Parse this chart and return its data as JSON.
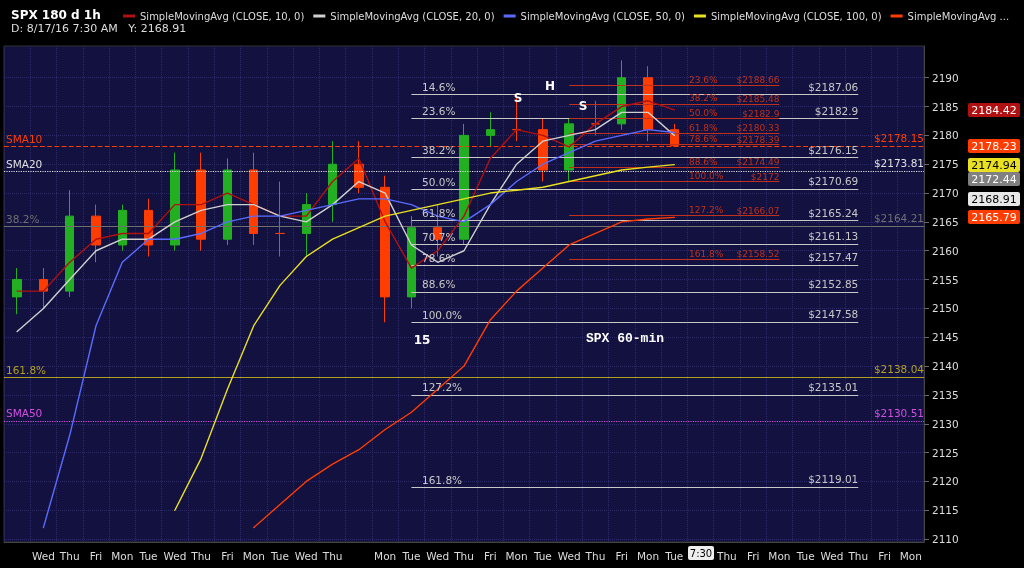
{
  "chart_data": {
    "type": "candlestick",
    "title": "SPX 180 d 1h",
    "subtitle": "D: 8/17/16 7:30 AM   Y: 2168.91",
    "categories": [
      null,
      "Wed",
      "Thu",
      "Fri",
      "Mon",
      "Tue",
      "Wed",
      "Thu",
      "Fri",
      "Mon",
      "Tue",
      "Wed",
      "Thu",
      null,
      "Mon",
      "Tue",
      "Wed",
      "Thu",
      "Fri",
      "Mon",
      "Tue",
      "Wed",
      "Thu",
      "Fri",
      "Mon",
      "Tue",
      null,
      "Thu",
      "Fri",
      "Mon",
      "Tue",
      "Wed",
      "Thu",
      "Fri",
      "Mon"
    ],
    "ohlc": [
      [
        2152,
        2157,
        2149,
        2155
      ],
      [
        2155,
        2157,
        2150,
        2153
      ],
      [
        2153,
        2170.5,
        2152,
        2166
      ],
      [
        2166,
        2168,
        2158,
        2161
      ],
      [
        2161,
        2168,
        2160,
        2167
      ],
      [
        2167,
        2169,
        2159,
        2161
      ],
      [
        2161,
        2177,
        2160,
        2174
      ],
      [
        2174,
        2177,
        2160,
        2162
      ],
      [
        2162,
        2176,
        2161,
        2174
      ],
      [
        2174,
        2177,
        2161,
        2163
      ],
      [
        2163,
        2172,
        2159,
        2163
      ],
      [
        2163,
        2170,
        2159,
        2168
      ],
      [
        2168,
        2179,
        2165,
        2175
      ],
      [
        2175,
        2179,
        2170,
        2171
      ],
      [
        2171,
        2173,
        2147.6,
        2152
      ],
      [
        2152,
        2166,
        2150,
        2164
      ],
      [
        2164,
        2168,
        2159,
        2162
      ],
      [
        2162,
        2182,
        2161,
        2180
      ],
      [
        2180,
        2184,
        2178,
        2181
      ],
      [
        2181,
        2187,
        2179,
        2181
      ],
      [
        2181,
        2183,
        2172,
        2174
      ],
      [
        2174,
        2183,
        2172,
        2182
      ],
      [
        2182,
        2186,
        2180,
        2182
      ],
      [
        2182,
        2193,
        2181,
        2190
      ],
      [
        2190,
        2192,
        2179,
        2181
      ],
      [
        2181,
        2182,
        2178,
        2178.23
      ],
      null,
      null,
      null,
      null,
      null,
      null,
      null,
      null,
      null
    ],
    "colors": [
      "#22b022",
      "#ff3d00",
      "#22b022",
      "#ff3d00",
      "#22b022",
      "#ff3d00",
      "#22b022",
      "#ff3d00",
      "#22b022",
      "#ff3d00",
      "#ff3d00",
      "#22b022",
      "#22b022",
      "#ff3d00",
      "#ff3d00",
      "#22b022",
      "#ff3d00",
      "#22b022",
      "#22b022",
      "#ff3d00",
      "#ff3d00",
      "#22b022",
      "#ff3d00",
      "#22b022",
      "#ff3d00",
      "#ff3d00",
      null,
      null,
      null,
      null,
      null,
      null,
      null,
      null,
      null
    ],
    "series": [
      {
        "type": "line",
        "name": "SimpleMovingAvg (CLOSE, 10, 0)",
        "color": "#b01010",
        "values": [
          2153,
          2153,
          2158,
          2162,
          2163,
          2163,
          2168,
          2168,
          2170,
          2168,
          2166,
          2166,
          2172,
          2176,
          2165,
          2157,
          2160,
          2166,
          2176,
          2181,
          2180,
          2178,
          2182,
          2185,
          2186,
          2184.42,
          null,
          null,
          null,
          null,
          null,
          null,
          null,
          null,
          null
        ]
      },
      {
        "type": "line",
        "name": "SimpleMovingAvg (CLOSE, 20, 0)",
        "color": "#d0d0d0",
        "values": [
          2146,
          2150,
          2155,
          2160,
          2162,
          2162,
          2165,
          2167,
          2168,
          2168,
          2166,
          2165,
          2168,
          2172,
          2170,
          2161,
          2158,
          2160,
          2168,
          2175,
          2179,
          2180,
          2181,
          2184,
          2184,
          2180,
          null,
          null,
          null,
          null,
          null,
          null,
          null,
          null,
          null
        ]
      },
      {
        "type": "line",
        "name": "SimpleMovingAvg (CLOSE, 50, 0)",
        "color": "#5a6cff",
        "values": [
          null,
          2112,
          2128,
          2147,
          2158,
          2162,
          2162,
          2163,
          2165,
          2166,
          2166,
          2167,
          2168,
          2169,
          2169,
          2168,
          2166,
          2165,
          2168,
          2172,
          2175,
          2177,
          2179,
          2180,
          2181,
          2180.5,
          null,
          null,
          null,
          null,
          null,
          null,
          null,
          null,
          null
        ]
      },
      {
        "type": "line",
        "name": "SimpleMovingAvg (CLOSE, 100, 0)",
        "color": "#e8e020",
        "values": [
          null,
          null,
          null,
          null,
          null,
          null,
          2115,
          2124,
          2136,
          2147,
          2154,
          2159,
          2162,
          2164,
          2166,
          2167,
          2168,
          2169,
          2170,
          2170.5,
          2171,
          2172,
          2173,
          2174,
          2174.5,
          2174.94,
          null,
          null,
          null,
          null,
          null,
          null,
          null,
          null,
          null
        ]
      },
      {
        "type": "line",
        "name": "SimpleMovingAvg ...",
        "color": "#ff3d00",
        "values": [
          null,
          null,
          null,
          null,
          null,
          null,
          null,
          null,
          null,
          2112,
          2116,
          2120,
          2123,
          2125.5,
          2129,
          2132,
          2136,
          2140,
          2148,
          2153,
          2157,
          2161,
          2163,
          2165,
          2165.5,
          2165.79,
          null,
          null,
          null,
          null,
          null,
          null,
          null,
          null,
          null
        ]
      }
    ],
    "ylim": [
      2109.5,
      2195.5
    ],
    "yticks": [
      2110,
      2115,
      2120,
      2125,
      2130,
      2135,
      2140,
      2145,
      2150,
      2155,
      2160,
      2165,
      2170,
      2175,
      2180,
      2185,
      2190
    ],
    "grid": true,
    "legend": "top",
    "ref_lines": [
      {
        "axis": "y",
        "value": 2187.06,
        "label": "$2187.06",
        "color": "#c8c8c8"
      },
      {
        "axis": "y",
        "value": 2182.9,
        "label": "$2182.9",
        "color": "#c8c8c8"
      },
      {
        "axis": "y",
        "value": 2176.15,
        "label": "$2176.15",
        "color": "#c8c8c8"
      },
      {
        "axis": "y",
        "value": 2170.69,
        "label": "$2170.69",
        "color": "#c8c8c8"
      },
      {
        "axis": "y",
        "value": 2165.24,
        "label": "$2165.24",
        "color": "#c8c8c8"
      },
      {
        "axis": "y",
        "value": 2161.13,
        "label": "$2161.13",
        "color": "#c8c8c8"
      },
      {
        "axis": "y",
        "value": 2157.47,
        "label": "$2157.47",
        "color": "#c8c8c8"
      },
      {
        "axis": "y",
        "value": 2152.85,
        "label": "$2152.85",
        "color": "#c8c8c8"
      },
      {
        "axis": "y",
        "value": 2147.58,
        "label": "$2147.58",
        "color": "#c8c8c8"
      },
      {
        "axis": "y",
        "value": 2135.01,
        "label": "$2135.01",
        "color": "#c8c8c8"
      },
      {
        "axis": "y",
        "value": 2119.01,
        "label": "$2119.01",
        "color": "#c8c8c8"
      },
      {
        "axis": "y",
        "value": 2188.66,
        "label": "$2188.66",
        "color": "#c0301a"
      },
      {
        "axis": "y",
        "value": 2185.48,
        "label": "$2185.48",
        "color": "#c0301a"
      },
      {
        "axis": "y",
        "value": 2182.9,
        "label": "$2182.9",
        "color": "#c0301a"
      },
      {
        "axis": "y",
        "value": 2180.33,
        "label": "$2180.33",
        "color": "#c0301a"
      },
      {
        "axis": "y",
        "value": 2178.39,
        "label": "$2178.39",
        "color": "#c0301a"
      },
      {
        "axis": "y",
        "value": 2174.49,
        "label": "$2174.49",
        "color": "#c0301a"
      },
      {
        "axis": "y",
        "value": 2172,
        "label": "$2172",
        "color": "#c0301a"
      },
      {
        "axis": "y",
        "value": 2166.07,
        "label": "$2166.07",
        "color": "#c0301a"
      },
      {
        "axis": "y",
        "value": 2158.52,
        "label": "$2158.52",
        "color": "#c0301a"
      },
      {
        "axis": "y",
        "value": 2178.15,
        "label": "$2178.15",
        "color": "#ff3d00",
        "line_style": "dashed"
      },
      {
        "axis": "y",
        "value": 2173.81,
        "label": "$2173.81",
        "color": "#e0e0e0",
        "line_style": "dotted"
      },
      {
        "axis": "y",
        "value": 2164.21,
        "label": "$2164.21",
        "color": "#707070"
      },
      {
        "axis": "y",
        "value": 2138.04,
        "label": "$2138.04",
        "color": "#b0a020"
      },
      {
        "axis": "y",
        "value": 2130.51,
        "label": "$2130.51",
        "color": "#d050e0",
        "line_style": "dotted"
      }
    ],
    "annotations": [
      {
        "text": "14.6%",
        "y": 2187.06
      },
      {
        "text": "23.6%",
        "y": 2182.9
      },
      {
        "text": "38.2%",
        "y": 2176.15
      },
      {
        "text": "50.0%",
        "y": 2170.69
      },
      {
        "text": "61.8%",
        "y": 2165.24
      },
      {
        "text": "70.7%",
        "y": 2161.13
      },
      {
        "text": "78.6%",
        "y": 2157.47
      },
      {
        "text": "88.6%",
        "y": 2152.85
      },
      {
        "text": "100.0%",
        "y": 2147.58
      },
      {
        "text": "127.2%",
        "y": 2135.01
      },
      {
        "text": "161.8%",
        "y": 2119.01
      },
      {
        "text": "23.6%",
        "y": 2188.66
      },
      {
        "text": "38.2%",
        "y": 2185.48
      },
      {
        "text": "50.0%",
        "y": 2182.9
      },
      {
        "text": "61.8%",
        "y": 2180.33
      },
      {
        "text": "78.6%",
        "y": 2178.39
      },
      {
        "text": "88.6%",
        "y": 2174.49
      },
      {
        "text": "100.0%",
        "y": 2172
      },
      {
        "text": "127.2%",
        "y": 2166.07
      },
      {
        "text": "161.8%",
        "y": 2158.52
      },
      {
        "text": "SMA10",
        "y": 2178.15
      },
      {
        "text": "SMA20",
        "y": 2173.81
      },
      {
        "text": "38.2%",
        "y": 2164.21
      },
      {
        "text": "161.8%",
        "y": 2138.04
      },
      {
        "text": "SMA50",
        "y": 2130.51
      },
      "S",
      "H",
      "S",
      "15",
      "SPX 60-min",
      "7:30",
      "2184.42",
      "2178.23",
      "2174.94",
      "2172.44",
      "2168.91",
      "2165.79"
    ]
  }
}
